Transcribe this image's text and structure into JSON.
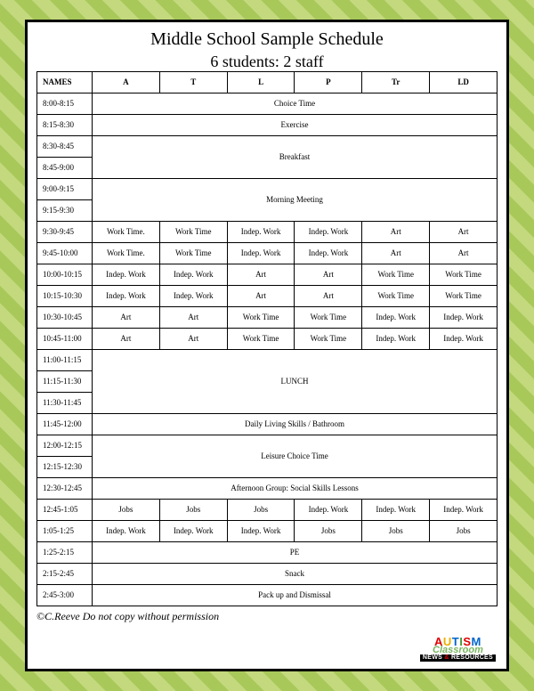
{
  "title": "Middle School Sample Schedule",
  "subtitle": "6 students: 2 staff",
  "header": {
    "names": "NAMES",
    "cols": [
      "A",
      "T",
      "L",
      "P",
      "Tr",
      "LD"
    ]
  },
  "rows": [
    {
      "time": "8:00-8:15",
      "span": 1,
      "label": "Choice Time"
    },
    {
      "time": "8:15-8:30",
      "span": 1,
      "label": "Exercise"
    },
    {
      "time": "8:30-8:45",
      "span": 2,
      "label": "Breakfast"
    },
    {
      "time": "8:45-9:00"
    },
    {
      "time": "9:00-9:15",
      "span": 2,
      "label": "Morning Meeting"
    },
    {
      "time": "9:15-9:30"
    },
    {
      "time": "9:30-9:45",
      "cells": [
        "Work Time.",
        "Work Time",
        "Indep. Work",
        "Indep. Work",
        "Art",
        "Art"
      ]
    },
    {
      "time": "9:45-10:00",
      "cells": [
        "Work Time.",
        "Work Time",
        "Indep. Work",
        "Indep. Work",
        "Art",
        "Art"
      ]
    },
    {
      "time": "10:00-10:15",
      "cells": [
        "Indep. Work",
        "Indep. Work",
        "Art",
        "Art",
        "Work Time",
        "Work Time"
      ]
    },
    {
      "time": "10:15-10:30",
      "cells": [
        "Indep. Work",
        "Indep. Work",
        "Art",
        "Art",
        "Work Time",
        "Work Time"
      ]
    },
    {
      "time": "10:30-10:45",
      "cells": [
        "Art",
        "Art",
        "Work Time",
        "Work Time",
        "Indep. Work",
        "Indep. Work"
      ]
    },
    {
      "time": "10:45-11:00",
      "cells": [
        "Art",
        "Art",
        "Work Time",
        "Work Time",
        "Indep. Work",
        "Indep. Work"
      ]
    },
    {
      "time": "11:00-11:15",
      "span": 3,
      "label": "LUNCH"
    },
    {
      "time": "11:15-11:30"
    },
    {
      "time": "11:30-11:45"
    },
    {
      "time": "11:45-12:00",
      "span": 1,
      "label": "Daily Living Skills / Bathroom"
    },
    {
      "time": "12:00-12:15",
      "span": 2,
      "label": "Leisure Choice Time"
    },
    {
      "time": "12:15-12:30"
    },
    {
      "time": "12:30-12:45",
      "span": 1,
      "label": "Afternoon Group: Social Skills Lessons"
    },
    {
      "time": "12:45-1:05",
      "cells": [
        "Jobs",
        "Jobs",
        "Jobs",
        "Indep. Work",
        "Indep. Work",
        "Indep. Work"
      ]
    },
    {
      "time": "1:05-1:25",
      "cells": [
        "Indep. Work",
        "Indep. Work",
        "Indep. Work",
        "Jobs",
        "Jobs",
        "Jobs"
      ]
    },
    {
      "time": "1:25-2:15",
      "span": 1,
      "label": "PE"
    },
    {
      "time": "2:15-2:45",
      "span": 1,
      "label": "Snack"
    },
    {
      "time": "2:45-3:00",
      "span": 1,
      "label": "Pack up and Dismissal"
    }
  ],
  "copyright": "©C.Reeve Do not copy without permission",
  "logo": {
    "line1": "AUTISM",
    "line2": "Classroom",
    "line3a": "NEWS",
    "line3amp": "&",
    "line3b": "RESOURCES"
  },
  "colors": {
    "stripe1": "#a8c95a",
    "stripe2": "#c4d97e",
    "border": "#000000",
    "bg": "#ffffff"
  }
}
